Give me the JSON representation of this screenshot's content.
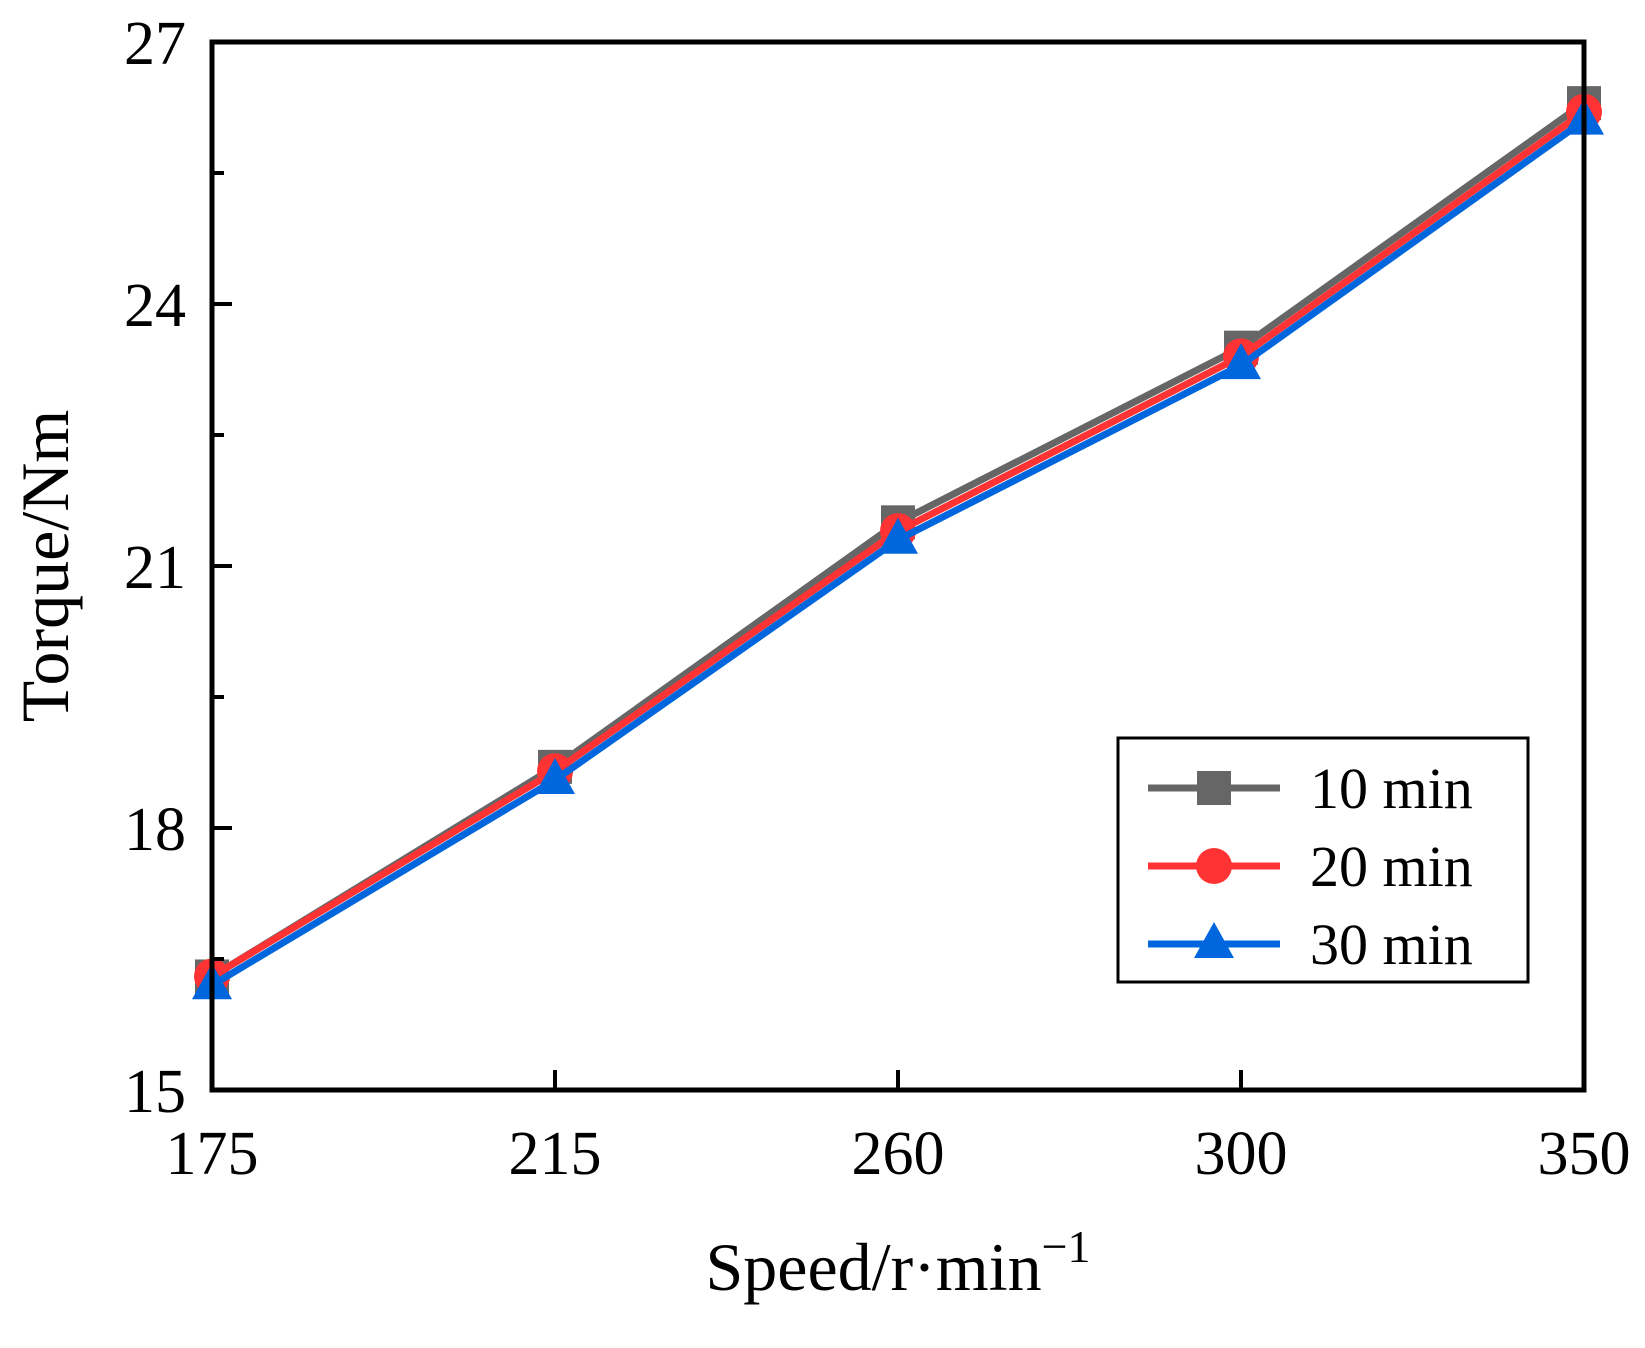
{
  "chart_data": {
    "type": "line",
    "title": "",
    "xlabel": "Speed/r·min",
    "xlabel_sup": "−1",
    "ylabel": "Torque/Nm",
    "categories": [
      "175",
      "215",
      "260",
      "300",
      "350"
    ],
    "ylim": [
      15,
      27
    ],
    "yticks": [
      15,
      18,
      21,
      24,
      27
    ],
    "yminor_ticks": [
      16.5,
      19.5,
      22.5,
      25.5
    ],
    "grid": false,
    "legend_position": "bottom-right",
    "series": [
      {
        "name": "10 min",
        "marker": "square",
        "color": "#666666",
        "values": [
          16.3,
          18.7,
          21.5,
          23.5,
          26.3
        ]
      },
      {
        "name": "20 min",
        "marker": "circle",
        "color": "#ff3333",
        "values": [
          16.3,
          18.65,
          21.4,
          23.4,
          26.2
        ]
      },
      {
        "name": "30 min",
        "marker": "triangle",
        "color": "#0066dd",
        "values": [
          16.2,
          18.55,
          21.3,
          23.3,
          26.1
        ]
      }
    ]
  }
}
